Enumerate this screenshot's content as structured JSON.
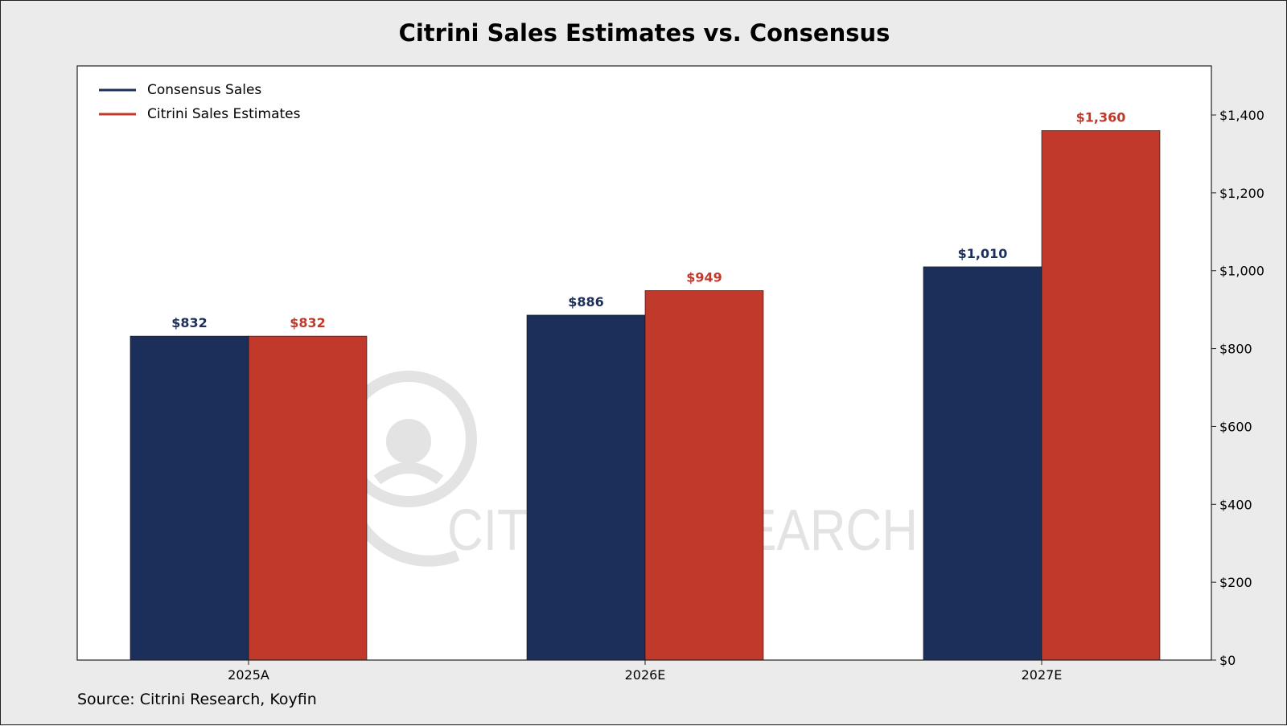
{
  "chart_data": {
    "type": "bar",
    "title": "Citrini Sales Estimates vs. Consensus",
    "categories": [
      "2025A",
      "2026E",
      "2027E"
    ],
    "series": [
      {
        "name": "Consensus Sales",
        "values": [
          832,
          886,
          1010
        ],
        "labels": [
          "$832",
          "$886",
          "$1,010"
        ],
        "color": "#1c2e5a"
      },
      {
        "name": "Citrini Sales Estimates",
        "values": [
          832,
          949,
          1360
        ],
        "labels": [
          "$832",
          "$949",
          "$1,360"
        ],
        "color": "#c0392b"
      }
    ],
    "ylim": [
      0,
      1526
    ],
    "y_axis_side": "right",
    "y_ticks": [
      0,
      200,
      400,
      600,
      800,
      1000,
      1200,
      1400
    ],
    "y_tick_labels": [
      "$0",
      "$200",
      "$400",
      "$600",
      "$800",
      "$1,000",
      "$1,200",
      "$1,400"
    ],
    "legend_position": "top-left",
    "grid": false,
    "source": "Source: Citrini Research, Koyfin"
  },
  "watermark": {
    "text": "CITRINI RESEARCH",
    "color": "#e3e3e3"
  }
}
